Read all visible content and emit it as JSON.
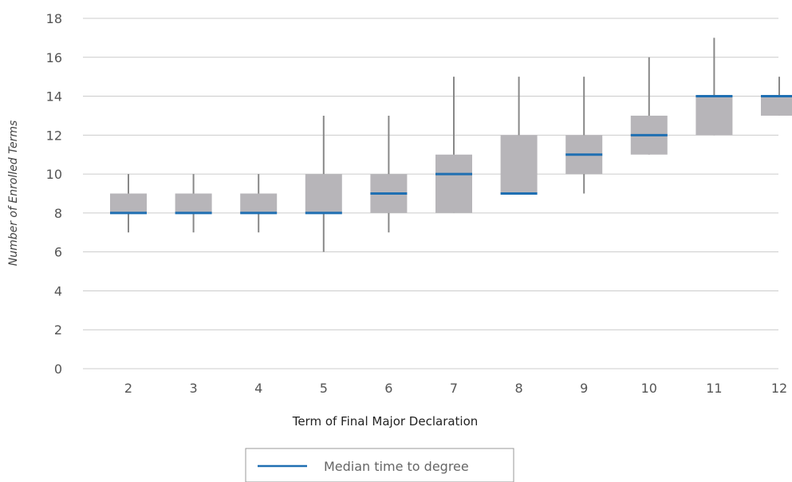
{
  "chart_data": {
    "type": "box",
    "xlabel": "Term of Final Major Declaration",
    "ylabel": "Number of Enrolled Terms",
    "ylim": [
      0,
      18
    ],
    "yticks": [
      0,
      2,
      4,
      6,
      8,
      10,
      12,
      14,
      16,
      18
    ],
    "categories": [
      "2",
      "3",
      "4",
      "5",
      "6",
      "7",
      "8",
      "9",
      "10",
      "11",
      "12"
    ],
    "boxes": [
      {
        "min": 7,
        "q1": 8,
        "median": 8,
        "q3": 9,
        "max": 10
      },
      {
        "min": 7,
        "q1": 8,
        "median": 8,
        "q3": 9,
        "max": 10
      },
      {
        "min": 7,
        "q1": 8,
        "median": 8,
        "q3": 9,
        "max": 10
      },
      {
        "min": 6,
        "q1": 8,
        "median": 8,
        "q3": 10,
        "max": 13
      },
      {
        "min": 7,
        "q1": 8,
        "median": 9,
        "q3": 10,
        "max": 13
      },
      {
        "min": 8,
        "q1": 8,
        "median": 10,
        "q3": 11,
        "max": 15
      },
      {
        "min": 9,
        "q1": 9,
        "median": 9,
        "q3": 12,
        "max": 15
      },
      {
        "min": 9,
        "q1": 10,
        "median": 11,
        "q3": 12,
        "max": 15
      },
      {
        "min": 11,
        "q1": 11,
        "median": 12,
        "q3": 13,
        "max": 16
      },
      {
        "min": 12,
        "q1": 12,
        "median": 14,
        "q3": 14,
        "max": 17
      },
      {
        "min": 13,
        "q1": 13,
        "median": 14,
        "q3": 14,
        "max": 15
      }
    ],
    "grid": true,
    "legend": {
      "placement": "bottom-center",
      "entries": [
        {
          "label": "Median time to degree",
          "color": "#1f6fb2"
        }
      ]
    }
  },
  "colors": {
    "box_fill": "#b7b5b9",
    "whisker": "#888888",
    "median": "#1f6fb2",
    "grid": "#cccccc",
    "legend_border": "#999999"
  }
}
